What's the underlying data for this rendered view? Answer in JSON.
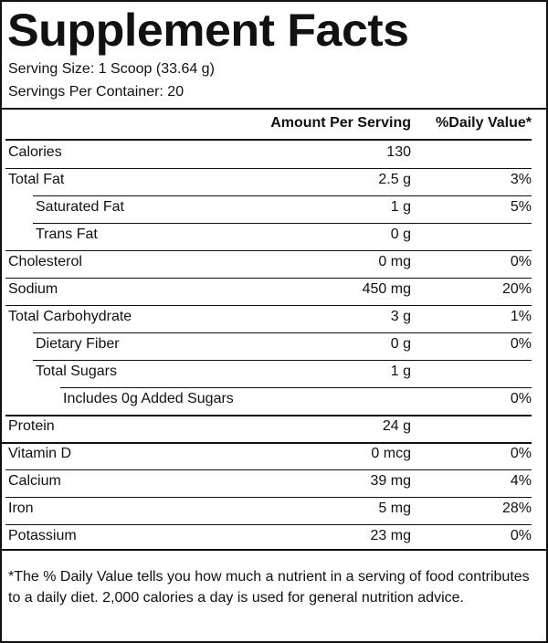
{
  "label": {
    "title": "Supplement Facts",
    "serving_size": "Serving Size: 1 Scoop (33.64 g)",
    "servings_per_container": "Servings Per Container: 20",
    "header": {
      "amount": "Amount Per Serving",
      "daily_value": "%Daily Value*"
    },
    "rows": [
      {
        "name": "Calories",
        "amount": "130",
        "dv": "",
        "indent": 0
      },
      {
        "name": "Total Fat",
        "amount": "2.5 g",
        "dv": "3%",
        "indent": 0
      },
      {
        "name": "Saturated Fat",
        "amount": "1 g",
        "dv": "5%",
        "indent": 1
      },
      {
        "name": "Trans Fat",
        "amount": "0 g",
        "dv": "",
        "indent": 1
      },
      {
        "name": "Cholesterol",
        "amount": "0 mg",
        "dv": "0%",
        "indent": 0
      },
      {
        "name": "Sodium",
        "amount": "450 mg",
        "dv": "20%",
        "indent": 0
      },
      {
        "name": "Total Carbohydrate",
        "amount": "3 g",
        "dv": "1%",
        "indent": 0
      },
      {
        "name": "Dietary Fiber",
        "amount": "0 g",
        "dv": "0%",
        "indent": 1
      },
      {
        "name": "Total Sugars",
        "amount": "1 g",
        "dv": "",
        "indent": 1
      },
      {
        "name": "Includes 0g Added Sugars",
        "amount": "",
        "dv": "0%",
        "indent": 2
      },
      {
        "name": "Protein",
        "amount": "24 g",
        "dv": "",
        "indent": 0
      },
      {
        "name": "Vitamin D",
        "amount": "0 mcg",
        "dv": "0%",
        "indent": 0
      },
      {
        "name": "Calcium",
        "amount": "39 mg",
        "dv": "4%",
        "indent": 0
      },
      {
        "name": "Iron",
        "amount": "5 mg",
        "dv": "28%",
        "indent": 0
      },
      {
        "name": "Potassium",
        "amount": "23 mg",
        "dv": "0%",
        "indent": 0
      }
    ],
    "footnote": "*The % Daily Value tells you how much a nutrient in a serving of food contributes to a daily diet. 2,000 calories a day is used for general nutrition advice."
  }
}
